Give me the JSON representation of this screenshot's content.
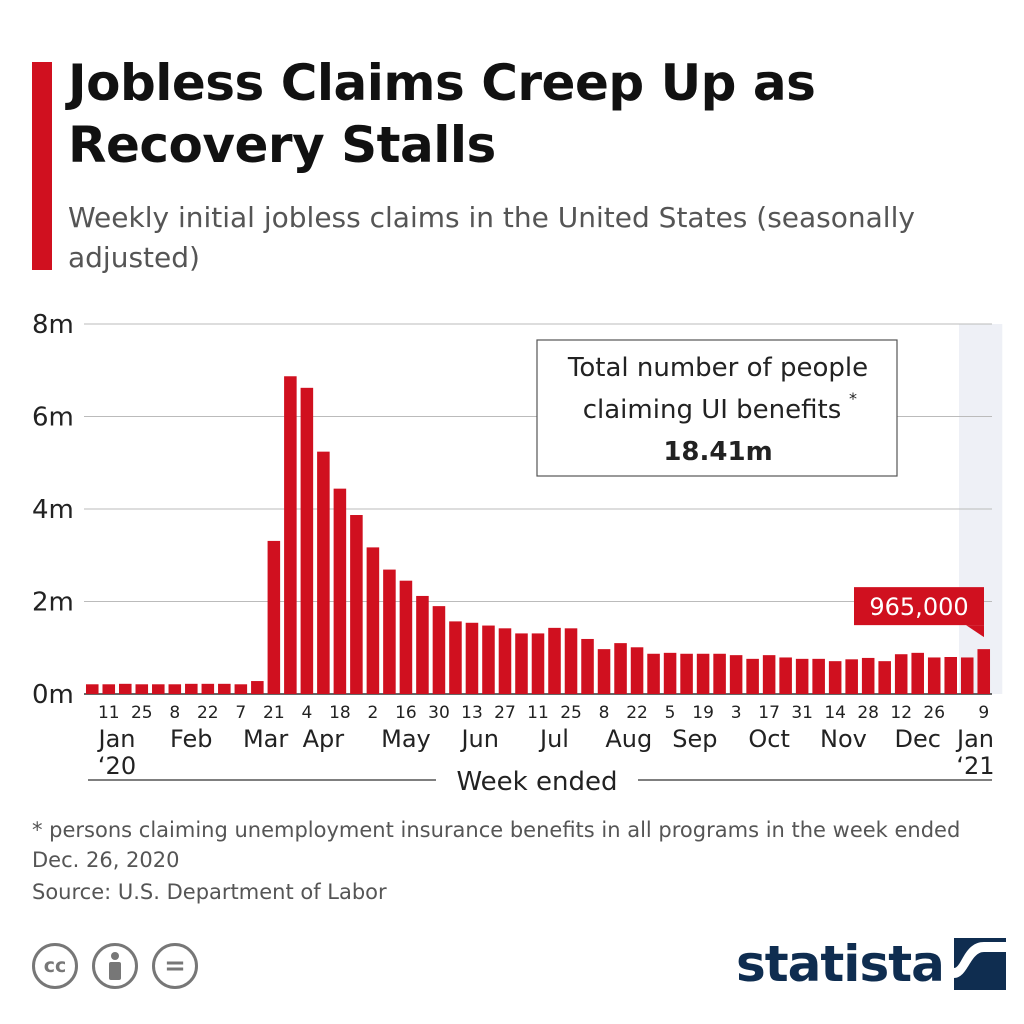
{
  "title": "Jobless Claims Creep Up as Recovery Stalls",
  "subtitle": "Weekly initial jobless claims in the United States (seasonally adjusted)",
  "chart_data": {
    "type": "bar",
    "unit": "m",
    "ylim": [
      0,
      8
    ],
    "yticks": [
      "0m",
      "2m",
      "4m",
      "6m",
      "8m"
    ],
    "grid": true,
    "bar_color": "#d0101f",
    "xlabel": "Week ended",
    "values": [
      0.21,
      0.21,
      0.22,
      0.21,
      0.21,
      0.21,
      0.22,
      0.22,
      0.22,
      0.21,
      0.28,
      3.31,
      6.87,
      6.62,
      5.24,
      4.44,
      3.87,
      3.17,
      2.69,
      2.45,
      2.12,
      1.9,
      1.57,
      1.54,
      1.48,
      1.42,
      1.31,
      1.31,
      1.43,
      1.42,
      1.19,
      0.97,
      1.1,
      1.01,
      0.87,
      0.89,
      0.87,
      0.87,
      0.87,
      0.84,
      0.76,
      0.84,
      0.79,
      0.76,
      0.76,
      0.71,
      0.75,
      0.78,
      0.71,
      0.86,
      0.89,
      0.79,
      0.8,
      0.79,
      0.97
    ],
    "tick_labels": [
      {
        "i": 1,
        "label": "11"
      },
      {
        "i": 3,
        "label": "25"
      },
      {
        "i": 5,
        "label": "8"
      },
      {
        "i": 7,
        "label": "22"
      },
      {
        "i": 9,
        "label": "7"
      },
      {
        "i": 11,
        "label": "21"
      },
      {
        "i": 13,
        "label": "4"
      },
      {
        "i": 15,
        "label": "18"
      },
      {
        "i": 17,
        "label": "2"
      },
      {
        "i": 19,
        "label": "16"
      },
      {
        "i": 21,
        "label": "30"
      },
      {
        "i": 23,
        "label": "13"
      },
      {
        "i": 25,
        "label": "27"
      },
      {
        "i": 27,
        "label": "11"
      },
      {
        "i": 29,
        "label": "25"
      },
      {
        "i": 31,
        "label": "8"
      },
      {
        "i": 33,
        "label": "22"
      },
      {
        "i": 35,
        "label": "5"
      },
      {
        "i": 37,
        "label": "19"
      },
      {
        "i": 39,
        "label": "3"
      },
      {
        "i": 41,
        "label": "17"
      },
      {
        "i": 43,
        "label": "31"
      },
      {
        "i": 45,
        "label": "14"
      },
      {
        "i": 47,
        "label": "28"
      },
      {
        "i": 49,
        "label": "12"
      },
      {
        "i": 51,
        "label": "26"
      },
      {
        "i": 54,
        "label": "9"
      }
    ],
    "month_labels": [
      {
        "i": 1.5,
        "label": "Jan",
        "year": "‘20"
      },
      {
        "i": 6,
        "label": "Feb"
      },
      {
        "i": 10.5,
        "label": "Mar"
      },
      {
        "i": 14,
        "label": "Apr"
      },
      {
        "i": 19,
        "label": "May"
      },
      {
        "i": 23.5,
        "label": "Jun"
      },
      {
        "i": 28,
        "label": "Jul"
      },
      {
        "i": 32.5,
        "label": "Aug"
      },
      {
        "i": 36.5,
        "label": "Sep"
      },
      {
        "i": 41,
        "label": "Oct"
      },
      {
        "i": 45.5,
        "label": "Nov"
      },
      {
        "i": 50,
        "label": "Dec"
      },
      {
        "i": 53.5,
        "label": "Jan",
        "year": "‘21"
      }
    ],
    "highlight": {
      "index": 54,
      "label": "965,000"
    },
    "info_box": {
      "line1": "Total number of people",
      "line2": "claiming UI benefits",
      "marker": "*",
      "value": "18.41m"
    }
  },
  "footnote": "* persons claiming unemployment insurance benefits in all programs in the week ended Dec. 26, 2020",
  "source": "Source: U.S. Department of Labor",
  "license_icons": [
    "cc-icon",
    "person-icon",
    "equals-icon"
  ],
  "license_glyphs": {
    "cc": "cc",
    "equals": "="
  },
  "brand": "statista",
  "colors": {
    "accent": "#d0101f",
    "brand": "#0f2d50",
    "grid": "#bbbbbb"
  }
}
